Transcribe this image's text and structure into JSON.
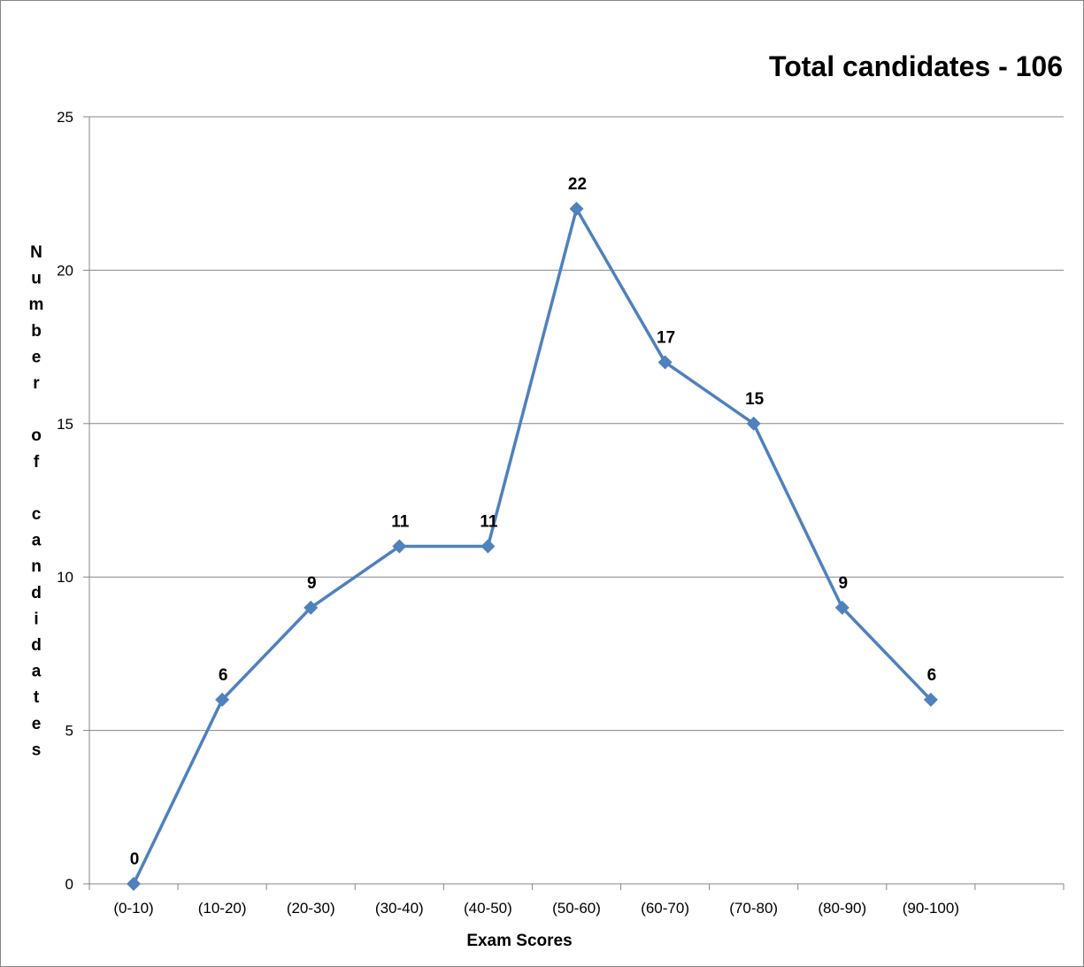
{
  "chart_data": {
    "type": "line",
    "title": "Total candidates - 106",
    "xlabel": "Exam Scores",
    "ylabel": "Number of candidates",
    "categories": [
      "(0-10)",
      "(10-20)",
      "(20-30)",
      "(30-40)",
      "(40-50)",
      "(50-60)",
      "(60-70)",
      "(70-80)",
      "(80-90)",
      "(90-100)"
    ],
    "series": [
      {
        "values": [
          0,
          6,
          9,
          11,
          11,
          22,
          17,
          15,
          9,
          6
        ]
      }
    ],
    "ylim": [
      0,
      25
    ],
    "yticks": [
      0,
      5,
      10,
      15,
      20,
      25
    ],
    "grid": true,
    "legend": "none",
    "data_labels": true,
    "colors": {
      "line": "#4f81bd",
      "marker": "#4f81bd",
      "grid": "#868686",
      "axis": "#868686"
    }
  }
}
